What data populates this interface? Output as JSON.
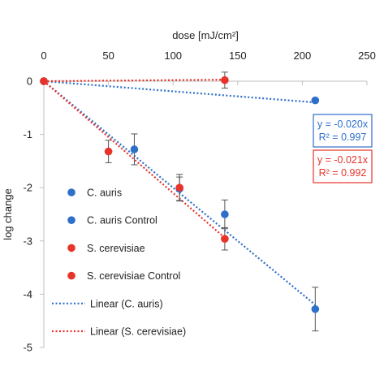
{
  "chart_data": {
    "type": "scatter",
    "xlabel": "dose [mJ/cm²]",
    "ylabel": "log change",
    "xlim": [
      0,
      250
    ],
    "ylim": [
      -5,
      0
    ],
    "x_ticks": [
      0,
      50,
      100,
      150,
      200,
      250
    ],
    "y_ticks": [
      0,
      -1,
      -2,
      -3,
      -4,
      -5
    ],
    "x_axis_position": "top",
    "grid": false,
    "legend_position": "left",
    "colors": {
      "c_auris": "#2e6fc9",
      "s_cerevisiae": "#e8332a"
    },
    "series": [
      {
        "name": "C. auris",
        "color": "#2e6fc9",
        "points": [
          {
            "x": 0,
            "y": 0,
            "err": 0
          },
          {
            "x": 70,
            "y": -1.28,
            "err": 0.29
          },
          {
            "x": 105,
            "y": -2.02,
            "err": 0.22
          },
          {
            "x": 140,
            "y": -2.5,
            "err": 0.27
          },
          {
            "x": 210,
            "y": -4.28,
            "err": 0.41
          }
        ]
      },
      {
        "name": "C. auris Control",
        "color": "#2e6fc9",
        "points": [
          {
            "x": 0,
            "y": 0
          },
          {
            "x": 210,
            "y": -0.36
          }
        ]
      },
      {
        "name": "S. cerevisiae",
        "color": "#e8332a",
        "points": [
          {
            "x": 0,
            "y": 0,
            "err": 0
          },
          {
            "x": 50,
            "y": -1.32,
            "err": 0.21
          },
          {
            "x": 105,
            "y": -2.0,
            "err": 0.25
          },
          {
            "x": 140,
            "y": -2.96,
            "err": 0.21
          }
        ]
      },
      {
        "name": "S. cerevisiae Control",
        "color": "#e8332a",
        "points": [
          {
            "x": 0,
            "y": 0
          },
          {
            "x": 140,
            "y": 0.02,
            "err": 0.15
          }
        ]
      }
    ],
    "trendlines": [
      {
        "name": "Linear (C. auris)",
        "color": "#2e6fc9",
        "slope": -0.02,
        "x_range": [
          0,
          210
        ],
        "equation": "y = -0.020x",
        "r2": "R² = 0.997"
      },
      {
        "name": "Linear (S. cerevisiae)",
        "color": "#e8332a",
        "slope": -0.021,
        "x_range": [
          0,
          140
        ],
        "equation": "y = -0.021x",
        "r2": "R² = 0.992"
      },
      {
        "name": "",
        "color": "#2e6fc9",
        "slope": -0.0019,
        "x_range": [
          0,
          210
        ],
        "equation": "",
        "r2": ""
      },
      {
        "name": "",
        "color": "#e8332a",
        "slope": 0.0002,
        "x_range": [
          0,
          140
        ],
        "equation": "",
        "r2": ""
      }
    ],
    "legend": [
      {
        "label": "C. auris",
        "marker": "dot",
        "color": "#2e6fc9"
      },
      {
        "label": "C. auris Control",
        "marker": "dot",
        "color": "#2e6fc9"
      },
      {
        "label": "S. cerevisiae",
        "marker": "dot",
        "color": "#e8332a"
      },
      {
        "label": "S. cerevisiae Control",
        "marker": "dot",
        "color": "#e8332a"
      },
      {
        "label": "Linear (C. auris)",
        "marker": "dotted-line",
        "color": "#2e6fc9"
      },
      {
        "label": "Linear (S. cerevisiae)",
        "marker": "dotted-line",
        "color": "#e8332a"
      }
    ],
    "annotations": [
      {
        "lines": [
          "y = -0.020x",
          "R² = 0.997"
        ],
        "color": "#2e6fc9"
      },
      {
        "lines": [
          "y = -0.021x",
          "R² = 0.992"
        ],
        "color": "#e8332a"
      }
    ]
  }
}
